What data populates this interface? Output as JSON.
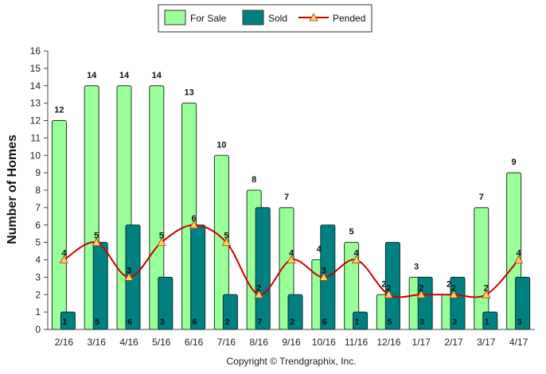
{
  "chart_data": {
    "type": "bar",
    "categories": [
      "2/16",
      "3/16",
      "4/16",
      "5/16",
      "6/16",
      "7/16",
      "8/16",
      "9/16",
      "10/16",
      "11/16",
      "12/16",
      "1/17",
      "2/17",
      "3/17",
      "4/17"
    ],
    "series": [
      {
        "name": "For Sale",
        "type": "bar",
        "color": "#99ff99",
        "values": [
          12,
          14,
          14,
          14,
          13,
          10,
          8,
          7,
          4,
          5,
          2,
          3,
          2,
          7,
          9
        ]
      },
      {
        "name": "Sold",
        "type": "bar",
        "color": "#008080",
        "values": [
          1,
          5,
          6,
          3,
          6,
          2,
          7,
          2,
          6,
          1,
          5,
          3,
          3,
          1,
          3
        ]
      },
      {
        "name": "Pended",
        "type": "line",
        "color": "#cc0000",
        "marker_color": "#ffcc66",
        "values": [
          4,
          5,
          3,
          5,
          6,
          5,
          2,
          4,
          3,
          4,
          2,
          2,
          2,
          2,
          4
        ]
      }
    ],
    "ylabel": "Number of Homes",
    "ylim": [
      0,
      16
    ],
    "yticks": [
      0,
      1,
      2,
      3,
      4,
      5,
      6,
      7,
      8,
      9,
      10,
      11,
      12,
      13,
      14,
      15,
      16
    ],
    "grid": false,
    "legend_position": "top-center",
    "footer": "Copyright © Trendgraphix, Inc."
  }
}
